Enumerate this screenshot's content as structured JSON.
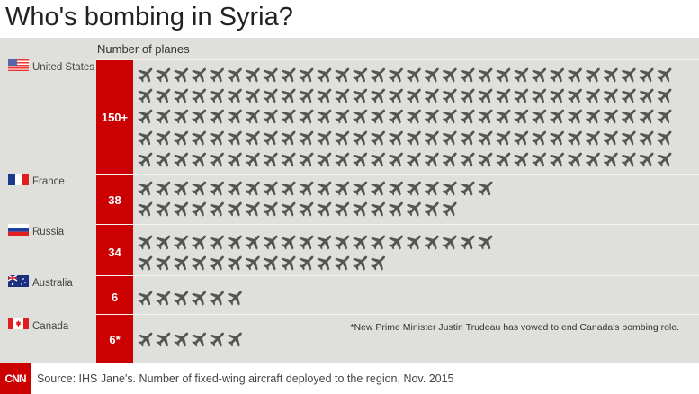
{
  "title": "Who's bombing in Syria?",
  "chart_data": {
    "type": "pictogram",
    "title": "Who's bombing in Syria?",
    "value_header": "Number of planes",
    "plane_color": "#555555",
    "accent": "#cc0000",
    "countries": [
      {
        "name": "United States",
        "label": "150+",
        "value": 150,
        "rows": [
          30,
          30,
          30,
          30,
          30
        ]
      },
      {
        "name": "France",
        "label": "38",
        "value": 38,
        "rows": [
          20,
          18
        ]
      },
      {
        "name": "Russia",
        "label": "34",
        "value": 34,
        "rows": [
          20,
          14
        ]
      },
      {
        "name": "Australia",
        "label": "6",
        "value": 6,
        "rows": [
          6
        ]
      },
      {
        "name": "Canada",
        "label": "6*",
        "value": 6,
        "rows": [
          6
        ]
      }
    ],
    "note": "*New Prime Minister Justin Trudeau has vowed to end Canada's bombing role."
  },
  "footer": {
    "logo": "CNN",
    "source": "Source: IHS Jane's. Number of fixed-wing aircraft deployed to the region, Nov. 2015"
  }
}
